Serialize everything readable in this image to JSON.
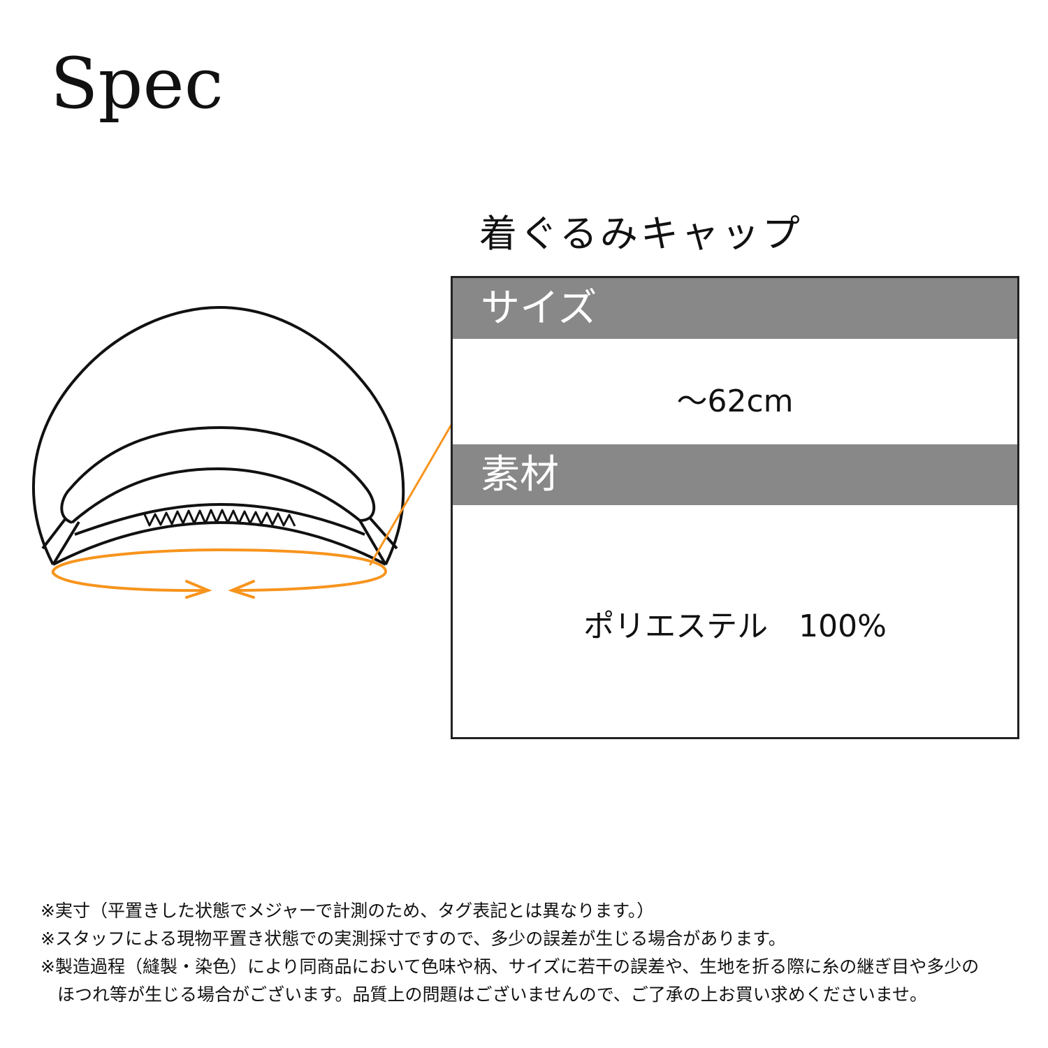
{
  "title": "Spec",
  "product_name": "着ぐるみキャップ",
  "spec_table": {
    "size_label": "サイズ",
    "size_value": "～62cm",
    "material_label": "素材",
    "material_value": "ポリエステル　100%"
  },
  "notes": [
    "※実寸（平置きした状態でメジャーで計測のため、タグ表記とは異なります。）",
    "※スタッフによる現物平置き状態での実測採寸ですので、多少の誤差が生じる場合があります。",
    "※製造過程（縫製・染色）により同商品において色味や柄、サイズに若干の誤差や、生地を折る際に糸の継ぎ目や多少の",
    "ほつれ等が生じる場合がございます。品質上の問題はございませんので、ご了承の上お買い求めくださいませ。"
  ],
  "colors": {
    "accent": "#F7941D",
    "header_bg": "#888888",
    "line": "#111111"
  }
}
